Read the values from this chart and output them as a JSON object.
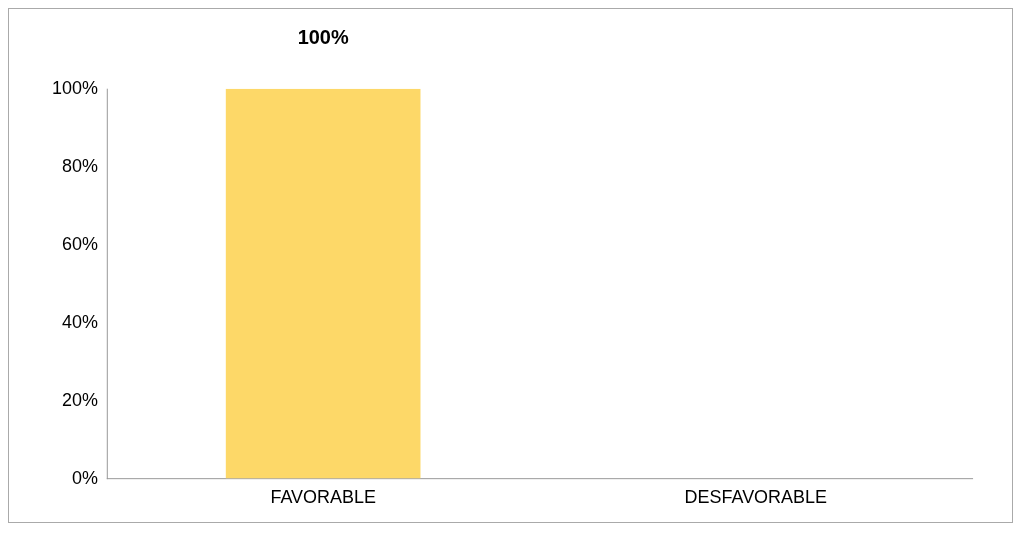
{
  "chart_data": {
    "type": "bar",
    "categories": [
      "FAVORABLE",
      "DESFAVORABLE"
    ],
    "values": [
      100,
      0
    ],
    "value_labels": [
      "100%",
      null
    ],
    "color": "#fdd868",
    "ylim": [
      0,
      100
    ],
    "yticks": [
      {
        "value": 0,
        "label": "0%"
      },
      {
        "value": 20,
        "label": "20%"
      },
      {
        "value": 40,
        "label": "40%"
      },
      {
        "value": 60,
        "label": "60%"
      },
      {
        "value": 80,
        "label": "80%"
      },
      {
        "value": 100,
        "label": "100%"
      }
    ],
    "grid": false,
    "legend": false
  }
}
